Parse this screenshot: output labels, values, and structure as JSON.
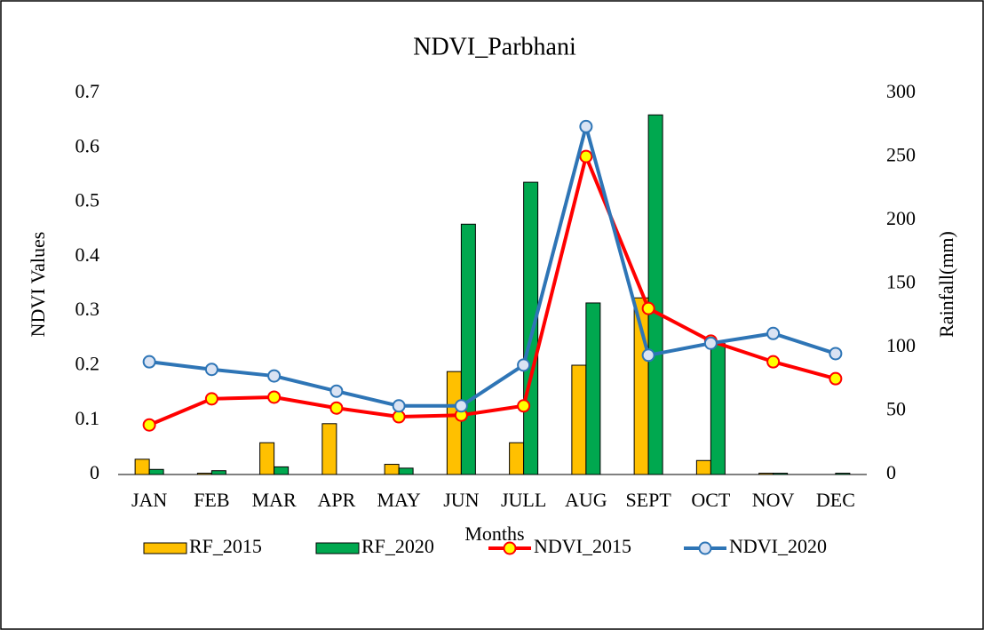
{
  "chart_data": {
    "type": "bar_line",
    "title": "NDVI_Parbhani",
    "x_label": "Months",
    "y_label": "NDVI Values",
    "y2_label": "Rainfall(mm)",
    "categories": [
      "JAN",
      "FEB",
      "MAR",
      "APR",
      "MAY",
      "JUN",
      "JULL",
      "AUG",
      "SEPT",
      "OCT",
      "NOV",
      "DEC"
    ],
    "series": [
      {
        "name": "RF_2015",
        "kind": "bar",
        "axis": "y2",
        "color": "#ffc000",
        "values": [
          12,
          1,
          25,
          40,
          8,
          81,
          25,
          86,
          139,
          11,
          1,
          0
        ]
      },
      {
        "name": "RF_2020",
        "kind": "bar",
        "axis": "y2",
        "color": "#00a84f",
        "values": [
          4,
          3,
          6,
          0,
          5,
          197,
          230,
          135,
          283,
          103,
          1,
          1
        ]
      },
      {
        "name": "NDVI_2015",
        "kind": "line",
        "axis": "y",
        "color": "#ff0000",
        "marker_color": "#ffff00",
        "values": [
          0.091,
          0.139,
          0.142,
          0.122,
          0.106,
          0.109,
          0.126,
          0.584,
          0.305,
          0.245,
          0.207,
          0.176
        ]
      },
      {
        "name": "NDVI_2020",
        "kind": "line",
        "axis": "y",
        "color": "#2e75b6",
        "marker_color": "#dae3f3",
        "values": [
          0.207,
          0.193,
          0.181,
          0.153,
          0.126,
          0.126,
          0.201,
          0.639,
          0.219,
          0.241,
          0.259,
          0.222
        ]
      }
    ],
    "ylim": [
      0,
      0.7
    ],
    "yticks": [
      0,
      0.1,
      0.2,
      0.3,
      0.4,
      0.5,
      0.6,
      0.7
    ],
    "y2lim": [
      0,
      300
    ],
    "y2ticks": [
      0,
      50,
      100,
      150,
      200,
      250,
      300
    ],
    "legend": "bottom"
  }
}
